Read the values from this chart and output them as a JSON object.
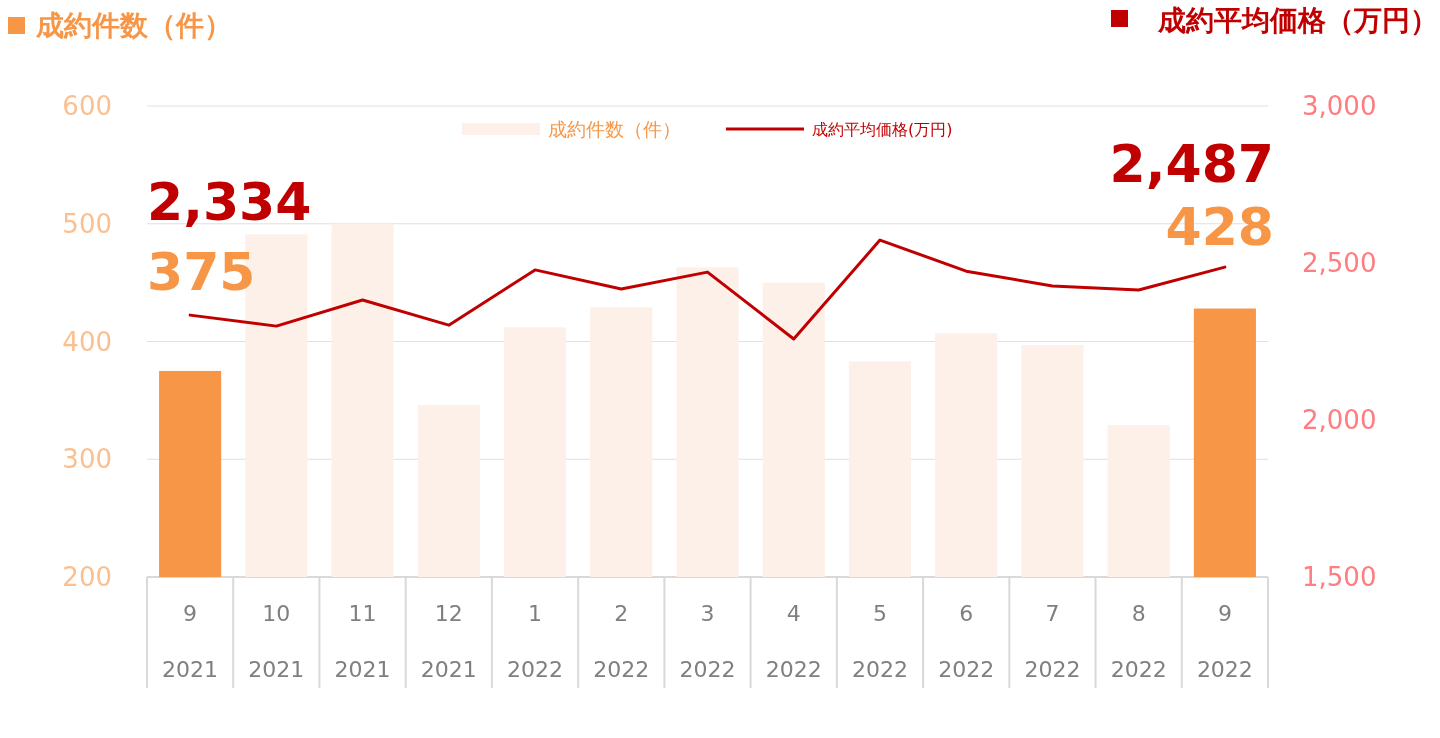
{
  "chart_data": {
    "type": "bar",
    "ylabel": "成約件数（件）",
    "y2label": "成約平均価格（万円）",
    "categories": [
      "9\n2021",
      "10\n2021",
      "11\n2021",
      "12\n2021",
      "1\n2022",
      "2\n2022",
      "3\n2022",
      "4\n2022",
      "5\n2022",
      "6\n2022",
      "7\n2022",
      "8\n2022",
      "9\n2022"
    ],
    "ylim": [
      200,
      600
    ],
    "yticks": [
      200,
      300,
      400,
      500,
      600
    ],
    "y2lim": [
      1500,
      3000
    ],
    "y2ticks": [
      {
        "value": 1500,
        "label": "1,500"
      },
      {
        "value": 2000,
        "label": "2,000"
      },
      {
        "value": 2500,
        "label": "2,500"
      },
      {
        "value": 3000,
        "label": "3,000"
      }
    ],
    "grid": "y",
    "legend": "top",
    "series": [
      {
        "name": "成約件数（件）",
        "color": "#fdf0e8",
        "colors": [
          "#f79646",
          "#fdf0e8",
          "#fdf0e8",
          "#fdf0e8",
          "#fdf0e8",
          "#fdf0e8",
          "#fdf0e8",
          "#fdf0e8",
          "#fdf0e8",
          "#fdf0e8",
          "#fdf0e8",
          "#fdf0e8",
          "#f79646"
        ],
        "values": [
          375,
          491,
          500,
          346,
          412,
          429,
          463,
          450,
          383,
          407,
          397,
          329,
          428
        ],
        "value_labels": [
          "375",
          null,
          null,
          null,
          null,
          null,
          null,
          null,
          null,
          null,
          null,
          null,
          "428"
        ]
      },
      {
        "name": "成約平均価格(万円)",
        "type": "line",
        "axis": "y2",
        "color": "#c00000",
        "values": [
          2334,
          2299,
          2382,
          2302,
          2478,
          2417,
          2471,
          2258,
          2573,
          2474,
          2427,
          2414,
          2487
        ],
        "value_labels": [
          "2,334",
          null,
          null,
          null,
          null,
          null,
          null,
          null,
          null,
          null,
          null,
          null,
          "2,487"
        ]
      }
    ]
  }
}
